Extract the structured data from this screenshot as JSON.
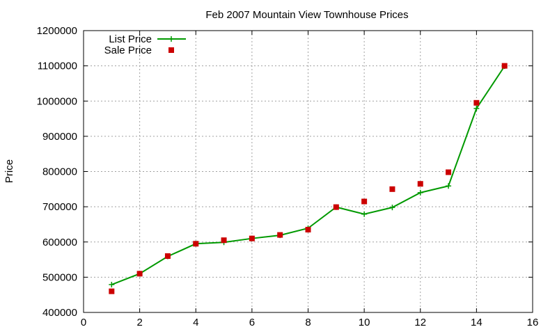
{
  "chart_data": {
    "type": "line",
    "title": "Feb 2007 Mountain View Townhouse Prices",
    "xlabel": "",
    "ylabel": "Price",
    "xlim": [
      0,
      16
    ],
    "ylim": [
      400000,
      1200000
    ],
    "x_ticks": [
      0,
      2,
      4,
      6,
      8,
      10,
      12,
      14,
      16
    ],
    "y_ticks": [
      400000,
      500000,
      600000,
      700000,
      800000,
      900000,
      1000000,
      1100000,
      1200000
    ],
    "grid": true,
    "legend_position": "top-left",
    "series": [
      {
        "name": "List Price",
        "style": "line-with-plus-markers",
        "color": "#009900",
        "x": [
          1,
          2,
          3,
          4,
          5,
          6,
          7,
          8,
          9,
          10,
          11,
          12,
          13,
          14,
          15
        ],
        "y": [
          479000,
          510000,
          559000,
          595000,
          599000,
          610000,
          619000,
          639000,
          699000,
          679000,
          698000,
          740000,
          759000,
          979000,
          1099000
        ]
      },
      {
        "name": "Sale Price",
        "style": "square-markers",
        "color": "#cc0000",
        "x": [
          1,
          2,
          3,
          4,
          5,
          6,
          7,
          8,
          9,
          10,
          11,
          12,
          13,
          14,
          15
        ],
        "y": [
          460000,
          510000,
          560000,
          595000,
          605000,
          610000,
          620000,
          635000,
          699000,
          715000,
          750000,
          765000,
          798000,
          995000,
          1100000
        ]
      }
    ]
  }
}
